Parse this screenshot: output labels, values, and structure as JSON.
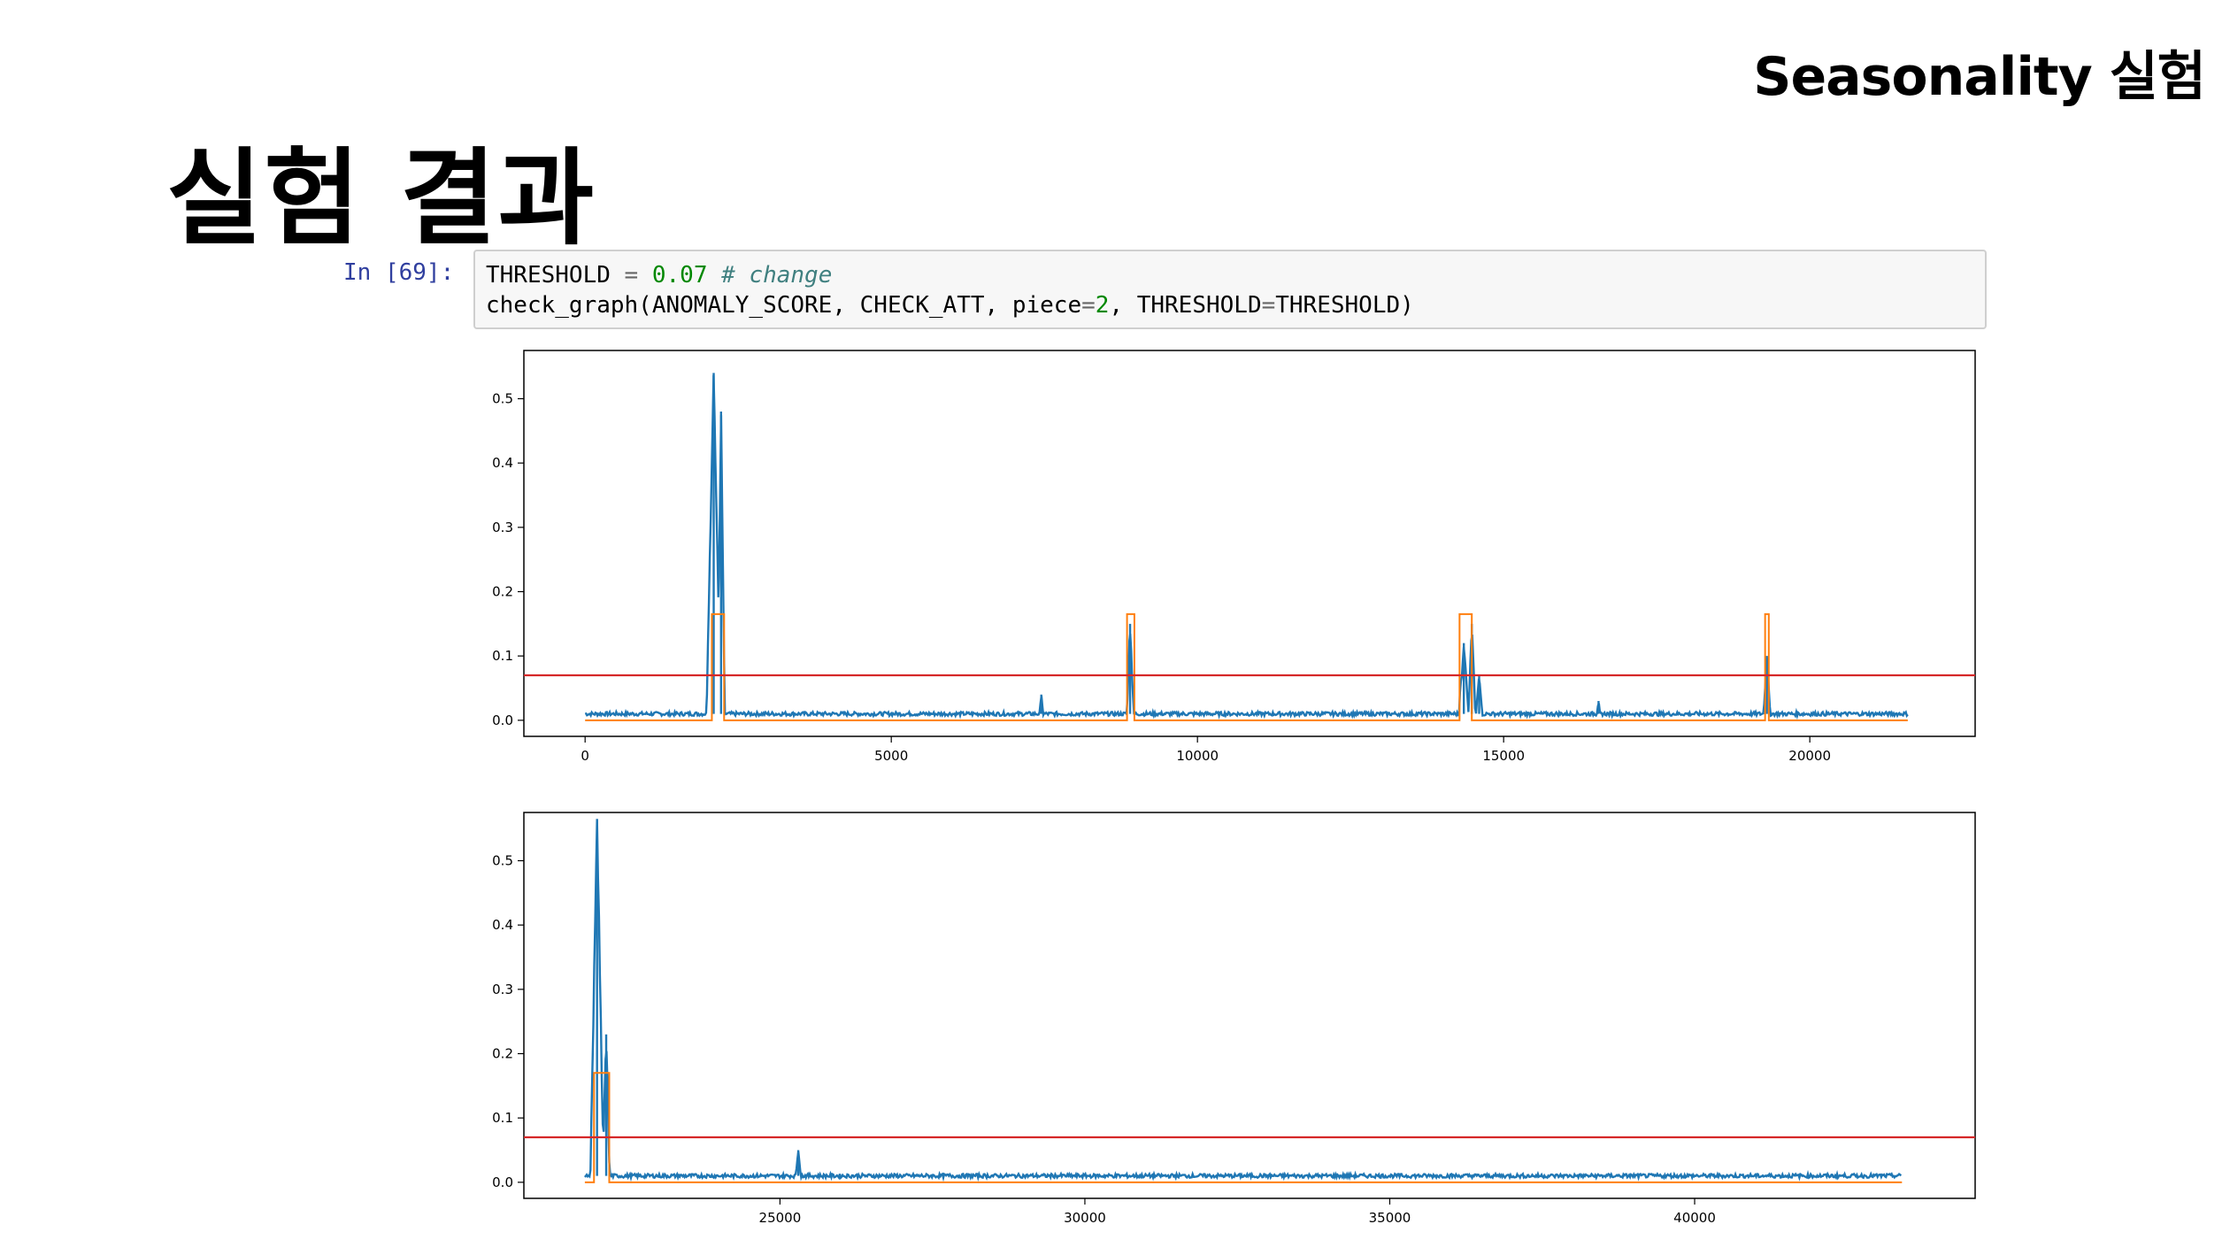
{
  "header": {
    "tag": "Seasonality 실험"
  },
  "slide": {
    "title": "실험 결과"
  },
  "notebook": {
    "prompt": "In [69]:",
    "line1": {
      "var": "THRESHOLD",
      "op": " = ",
      "num": "0.07",
      "comment": " # change"
    },
    "line2": {
      "before": "check_graph(ANOMALY_SCORE, CHECK_ATT, piece",
      "eq": "=",
      "num": "2",
      "after": ", THRESHOLD",
      "eq2": "=",
      "tail": "THRESHOLD)"
    }
  },
  "colors": {
    "score": "#1f77b4",
    "label": "#ff7f0e",
    "threshold": "#d62728"
  },
  "chart_data": [
    {
      "type": "line",
      "xlim": [
        -1000,
        22700
      ],
      "ylim": [
        -0.025,
        0.575
      ],
      "xticks": [
        0,
        5000,
        10000,
        15000,
        20000
      ],
      "yticks": [
        0.0,
        0.1,
        0.2,
        0.3,
        0.4,
        0.5
      ],
      "threshold": 0.07,
      "baseline": 0.01,
      "x_range": [
        0,
        21600
      ],
      "series": [
        {
          "kind": "score",
          "spikes": [
            {
              "x": 2100,
              "y": 0.54,
              "width": 120
            },
            {
              "x": 2220,
              "y": 0.48,
              "width": 60
            },
            {
              "x": 7450,
              "y": 0.04,
              "width": 40
            },
            {
              "x": 8900,
              "y": 0.15,
              "width": 60
            },
            {
              "x": 14350,
              "y": 0.12,
              "width": 90
            },
            {
              "x": 14480,
              "y": 0.15,
              "width": 60
            },
            {
              "x": 14600,
              "y": 0.07,
              "width": 60
            },
            {
              "x": 16550,
              "y": 0.03,
              "width": 40
            },
            {
              "x": 19300,
              "y": 0.1,
              "width": 60
            }
          ]
        },
        {
          "kind": "label",
          "high": 0.165,
          "low": 0.0,
          "windows": [
            [
              2070,
              2270
            ],
            [
              8850,
              8970
            ],
            [
              14280,
              14480
            ],
            [
              19270,
              19330
            ]
          ]
        }
      ]
    },
    {
      "type": "line",
      "xlim": [
        20800,
        44600
      ],
      "ylim": [
        -0.025,
        0.575
      ],
      "xticks": [
        25000,
        30000,
        35000,
        40000
      ],
      "yticks": [
        0.0,
        0.1,
        0.2,
        0.3,
        0.4,
        0.5
      ],
      "threshold": 0.07,
      "baseline": 0.01,
      "x_range": [
        21800,
        43400
      ],
      "series": [
        {
          "kind": "score",
          "spikes": [
            {
              "x": 22000,
              "y": 0.565,
              "width": 110
            },
            {
              "x": 22150,
              "y": 0.23,
              "width": 60
            },
            {
              "x": 25300,
              "y": 0.05,
              "width": 50
            }
          ]
        },
        {
          "kind": "label",
          "high": 0.17,
          "low": 0.0,
          "windows": [
            [
              21950,
              22200
            ]
          ]
        }
      ]
    }
  ]
}
